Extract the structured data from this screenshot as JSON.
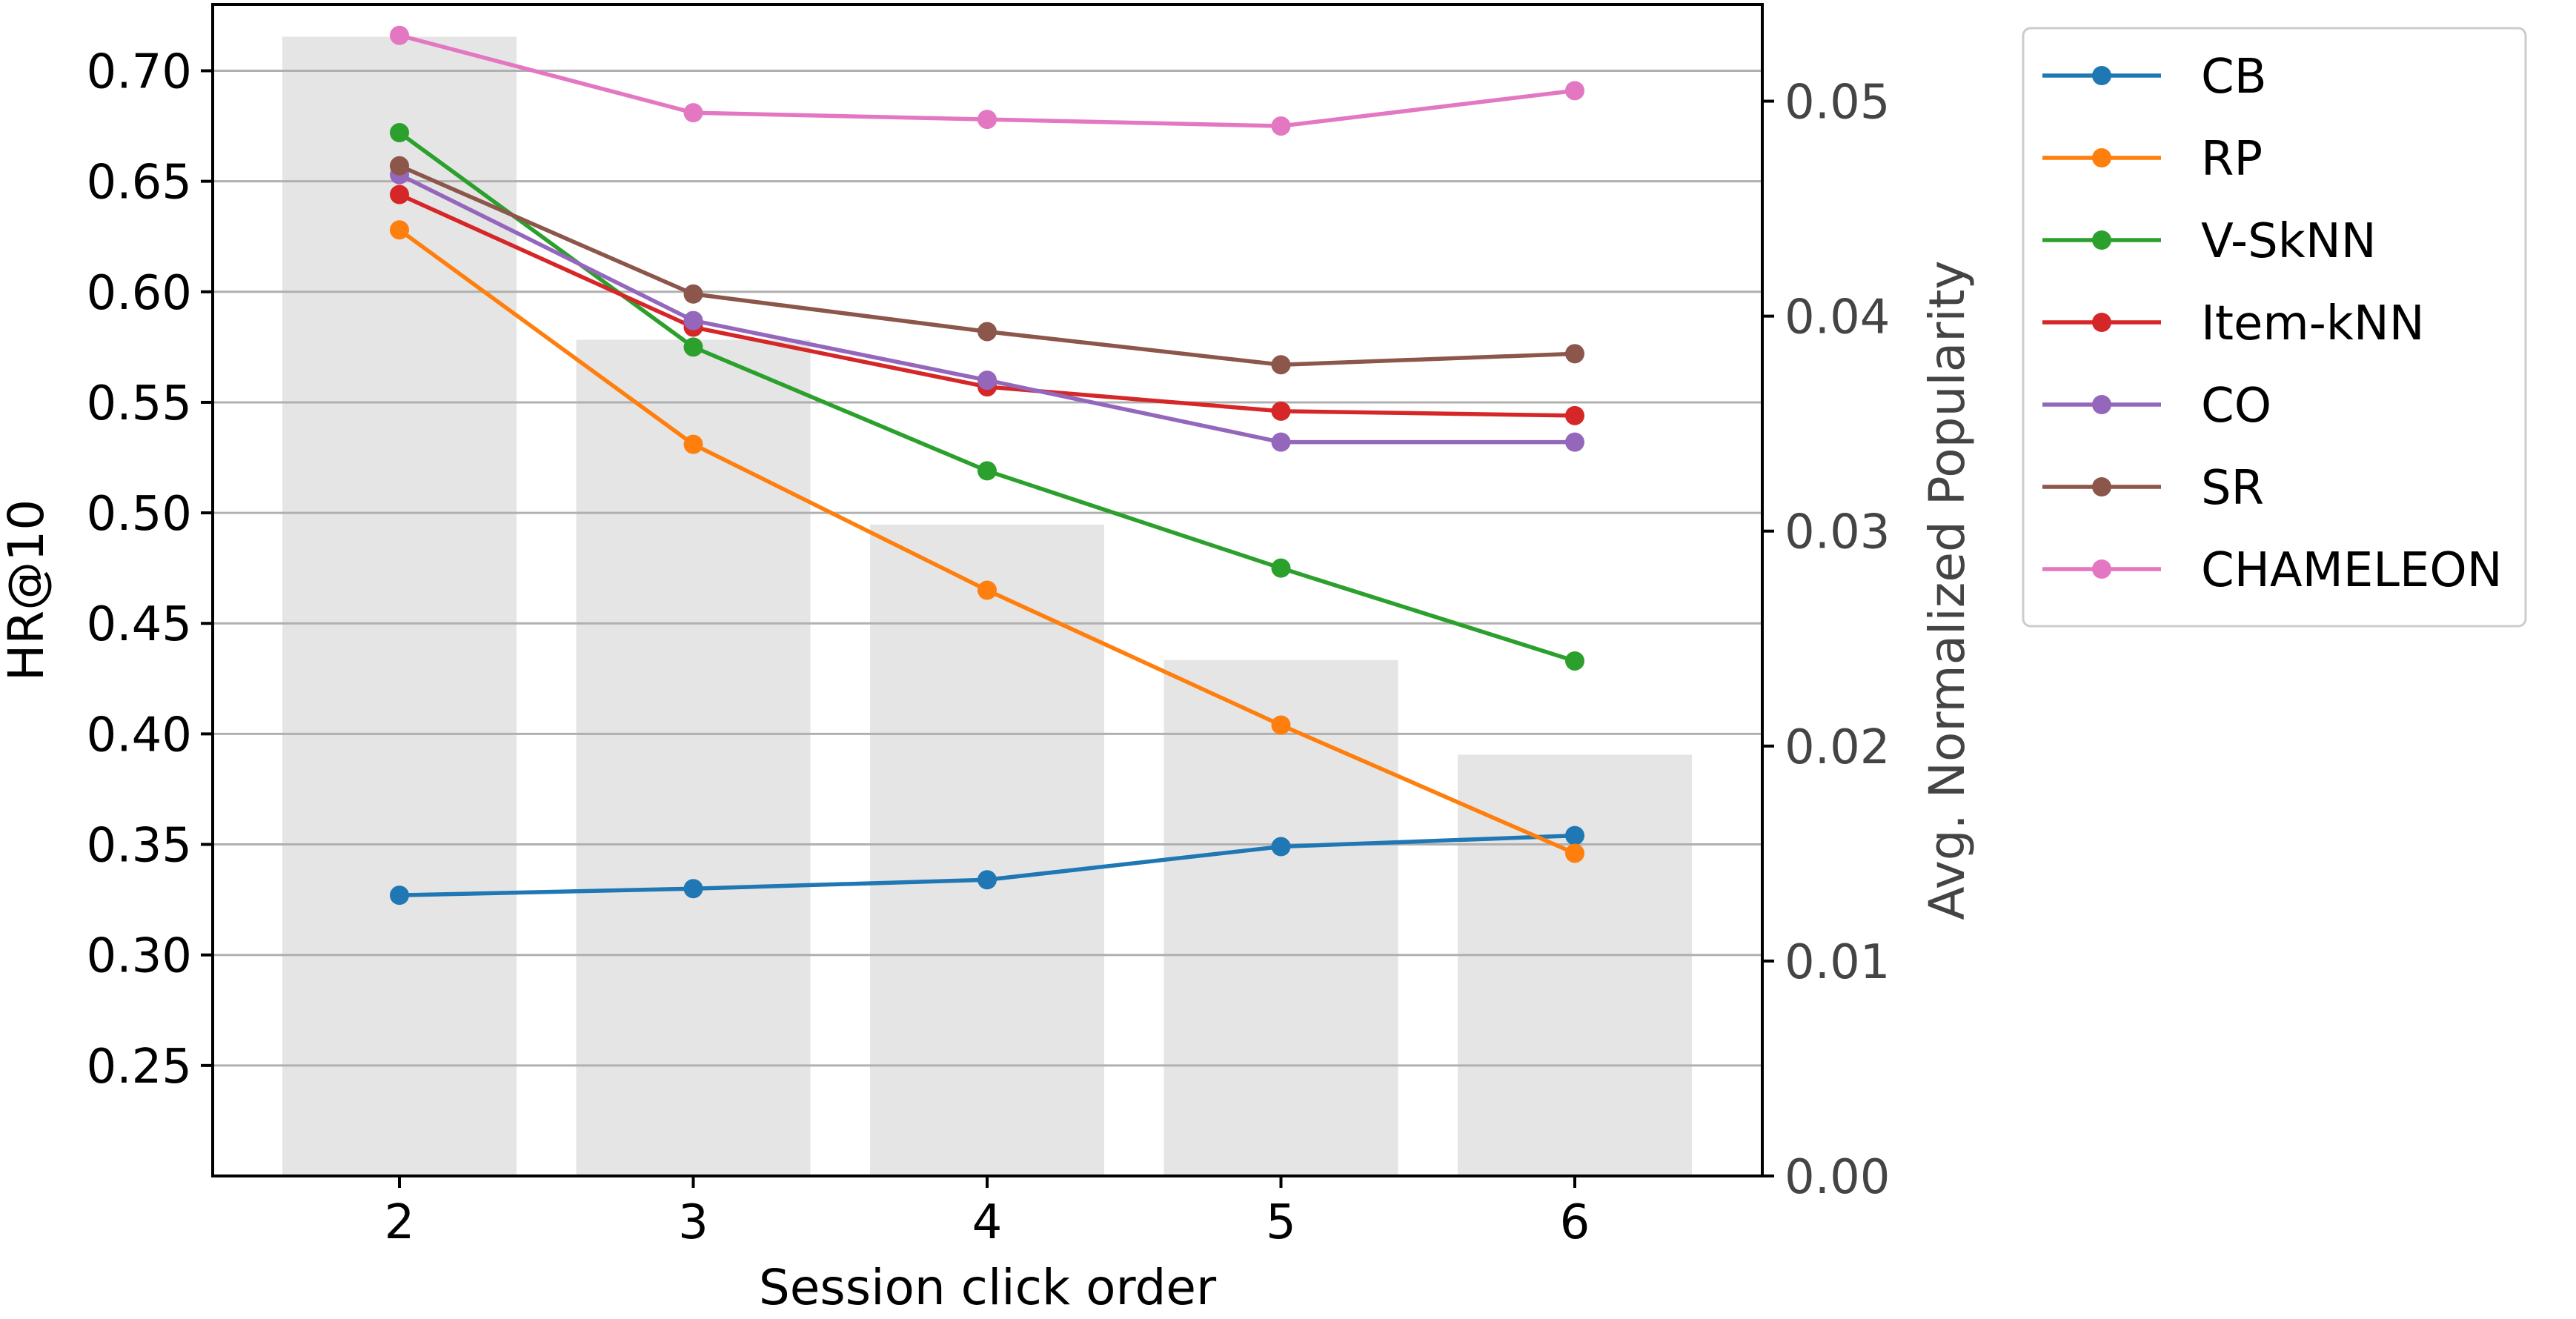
{
  "chart_data": {
    "type": "line",
    "xlabel": "Session click order",
    "ylabel": "HR@10",
    "ylabel_right": "Avg. Normalized Popularity",
    "x": [
      2,
      3,
      4,
      5,
      6
    ],
    "x_tick_labels": [
      "2",
      "3",
      "4",
      "5",
      "6"
    ],
    "ylim": [
      0.2,
      0.73
    ],
    "yticks": [
      0.25,
      0.3,
      0.35,
      0.4,
      0.45,
      0.5,
      0.55,
      0.6,
      0.65,
      0.7
    ],
    "ytick_labels": [
      "0.25",
      "0.30",
      "0.35",
      "0.40",
      "0.45",
      "0.50",
      "0.55",
      "0.60",
      "0.65",
      "0.70"
    ],
    "ylim_right": [
      0.0,
      0.0545
    ],
    "yticks_right": [
      0.0,
      0.01,
      0.02,
      0.03,
      0.04,
      0.05
    ],
    "ytick_labels_right": [
      "0.00",
      "0.01",
      "0.02",
      "0.03",
      "0.04",
      "0.05"
    ],
    "grid": "horizontal",
    "legend_position": "outside-right-top",
    "bars": {
      "axis": "right",
      "color": "#e5e5e5",
      "values": [
        0.053,
        0.0389,
        0.0303,
        0.024,
        0.0196
      ]
    },
    "series": [
      {
        "name": "CB",
        "color": "#1f77b4",
        "values": [
          0.327,
          0.33,
          0.334,
          0.349,
          0.354
        ]
      },
      {
        "name": "RP",
        "color": "#ff7f0e",
        "values": [
          0.628,
          0.531,
          0.465,
          0.404,
          0.346
        ]
      },
      {
        "name": "V-SkNN",
        "color": "#2ca02c",
        "values": [
          0.672,
          0.575,
          0.519,
          0.475,
          0.433
        ]
      },
      {
        "name": "Item-kNN",
        "color": "#d62728",
        "values": [
          0.644,
          0.584,
          0.557,
          0.546,
          0.544
        ]
      },
      {
        "name": "CO",
        "color": "#9467bd",
        "values": [
          0.653,
          0.587,
          0.56,
          0.532,
          0.532
        ]
      },
      {
        "name": "SR",
        "color": "#8c564b",
        "values": [
          0.657,
          0.599,
          0.582,
          0.567,
          0.572
        ]
      },
      {
        "name": "CHAMELEON",
        "color": "#e377c2",
        "values": [
          0.716,
          0.681,
          0.678,
          0.675,
          0.691
        ]
      }
    ]
  }
}
